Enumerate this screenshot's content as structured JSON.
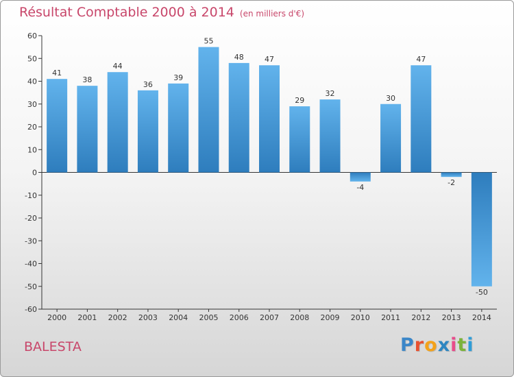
{
  "title": "Résultat Comptable 2000 à 2014",
  "subtitle": "(en milliers d'€)",
  "commune": "BALESTA",
  "logo": {
    "letters": [
      "P",
      "r",
      "o",
      "x",
      "i",
      "t",
      "i"
    ]
  },
  "colors": {
    "accent": "#c8466a",
    "bar_light": "#62b3ec",
    "bar_dark": "#2e7dbd",
    "axis": "#333333"
  },
  "chart_data": {
    "type": "bar",
    "title": "Résultat Comptable 2000 à 2014",
    "xlabel": "",
    "ylabel": "",
    "ylim": [
      -60,
      60
    ],
    "yticks": [
      60,
      50,
      40,
      30,
      20,
      10,
      0,
      -10,
      -20,
      -30,
      -40,
      -50,
      -60
    ],
    "grid": false,
    "categories": [
      "2000",
      "2001",
      "2002",
      "2003",
      "2004",
      "2005",
      "2006",
      "2007",
      "2008",
      "2009",
      "2010",
      "2011",
      "2012",
      "2013",
      "2014"
    ],
    "values": [
      41,
      38,
      44,
      36,
      39,
      55,
      48,
      47,
      29,
      32,
      -4,
      30,
      47,
      -2,
      -50
    ]
  }
}
